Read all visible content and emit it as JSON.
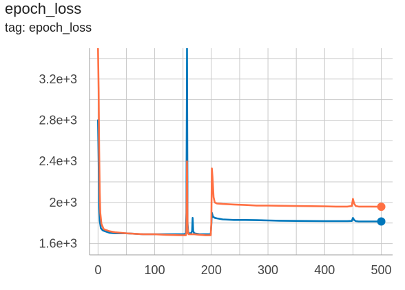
{
  "header": {
    "title": "epoch_loss",
    "tag": "tag: epoch_loss"
  },
  "colors": {
    "grid": "#c9c9c9",
    "axis": "#9e9e9e",
    "series_1": "#0077bb",
    "series_2": "#ff7043"
  },
  "chart_data": {
    "type": "line",
    "xlim": [
      -15,
      520
    ],
    "ylim": [
      1490,
      3500
    ],
    "x_ticks": [
      0,
      100,
      200,
      300,
      400,
      500
    ],
    "x_tick_labels": [
      "0",
      "100",
      "200",
      "300",
      "400",
      "500"
    ],
    "y_ticks": [
      1600,
      2000,
      2400,
      2800,
      3200
    ],
    "y_tick_labels": [
      "1.6e+3",
      "2e+3",
      "2.4e+3",
      "2.8e+3",
      "3.2e+3"
    ],
    "grid": true,
    "legend": false,
    "series": [
      {
        "color": "#0077bb",
        "x": [
          0,
          1,
          2,
          3,
          5,
          8,
          12,
          20,
          30,
          50,
          80,
          100,
          120,
          140,
          150,
          155,
          156,
          157,
          158,
          159,
          160,
          162,
          164,
          166,
          167,
          168,
          170,
          180,
          190,
          199,
          200,
          201,
          203,
          206,
          210,
          220,
          240,
          260,
          280,
          300,
          320,
          350,
          400,
          420,
          440,
          448,
          450,
          452,
          455,
          460,
          480,
          500
        ],
        "y": [
          2800,
          2400,
          1950,
          1820,
          1750,
          1730,
          1720,
          1705,
          1700,
          1700,
          1690,
          1690,
          1690,
          1690,
          1690,
          1695,
          1900,
          3500,
          1800,
          1720,
          1700,
          1700,
          1700,
          1720,
          1850,
          1720,
          1700,
          1690,
          1690,
          1690,
          1780,
          1900,
          1860,
          1850,
          1845,
          1835,
          1830,
          1830,
          1828,
          1825,
          1822,
          1820,
          1818,
          1818,
          1818,
          1820,
          1850,
          1830,
          1818,
          1815,
          1815,
          1815
        ]
      },
      {
        "color": "#ff7043",
        "x": [
          0,
          1,
          2,
          3,
          4,
          6,
          10,
          15,
          20,
          30,
          50,
          80,
          100,
          120,
          150,
          155,
          156,
          157,
          158,
          159,
          160,
          165,
          170,
          180,
          190,
          199,
          200,
          201,
          202,
          204,
          206,
          210,
          220,
          240,
          260,
          280,
          300,
          320,
          350,
          400,
          420,
          440,
          448,
          450,
          452,
          455,
          460,
          480,
          500
        ],
        "y": [
          3500,
          3100,
          2500,
          2100,
          1900,
          1790,
          1740,
          1730,
          1720,
          1710,
          1700,
          1690,
          1690,
          1685,
          1680,
          1680,
          1700,
          2400,
          1750,
          1700,
          1690,
          1690,
          1690,
          1685,
          1680,
          1680,
          1800,
          2330,
          2250,
          2050,
          2000,
          1990,
          1985,
          1980,
          1975,
          1970,
          1970,
          1968,
          1965,
          1962,
          1960,
          1960,
          1965,
          2035,
          1990,
          1965,
          1960,
          1960,
          1958
        ]
      }
    ]
  }
}
